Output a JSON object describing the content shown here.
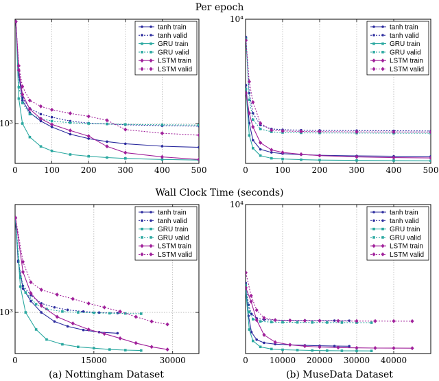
{
  "figure": {
    "row_titles": [
      "Per epoch",
      "Wall Clock Time (seconds)"
    ],
    "captions": [
      "(a) Nottingham Dataset",
      "(b) MuseData Dataset"
    ]
  },
  "series_style": [
    {
      "name": "tanh train",
      "color": "#2b2b9e",
      "dash": "solid",
      "marker": "circle"
    },
    {
      "name": "tanh valid",
      "color": "#2b2b9e",
      "dash": "dotted",
      "marker": "circle"
    },
    {
      "name": "GRU train",
      "color": "#2aa8a0",
      "dash": "solid",
      "marker": "square"
    },
    {
      "name": "GRU valid",
      "color": "#2aa8a0",
      "dash": "dotted",
      "marker": "square"
    },
    {
      "name": "LSTM train",
      "color": "#a0209a",
      "dash": "solid",
      "marker": "diamond"
    },
    {
      "name": "LSTM valid",
      "color": "#a0209a",
      "dash": "dotted",
      "marker": "diamond"
    }
  ],
  "chart_data": [
    {
      "type": "line",
      "y_scale": "log",
      "xlim": [
        0,
        500
      ],
      "ylim": [
        620,
        3500
      ],
      "xticks": [
        "0",
        "100",
        "200",
        "300",
        "400",
        "500"
      ],
      "xtick_values": [
        0,
        100,
        200,
        300,
        400,
        500
      ],
      "yticks": [
        {
          "label": "10³",
          "value": 1000
        }
      ],
      "legend": "top-right",
      "grid": true,
      "series": [
        {
          "name": "tanh train",
          "x": [
            2,
            10,
            20,
            40,
            70,
            100,
            150,
            200,
            250,
            300,
            400,
            500
          ],
          "y": [
            3400,
            1800,
            1320,
            1140,
            1030,
            960,
            880,
            835,
            805,
            785,
            762,
            752
          ]
        },
        {
          "name": "tanh valid",
          "x": [
            2,
            10,
            20,
            40,
            70,
            100,
            150,
            200,
            250,
            300,
            400,
            500
          ],
          "y": [
            3400,
            1800,
            1360,
            1200,
            1120,
            1080,
            1030,
            1005,
            995,
            985,
            975,
            970
          ]
        },
        {
          "name": "GRU train",
          "x": [
            2,
            10,
            20,
            40,
            70,
            100,
            150,
            200,
            250,
            300,
            400,
            500
          ],
          "y": [
            3400,
            1350,
            1000,
            850,
            760,
            720,
            690,
            675,
            665,
            658,
            650,
            645
          ]
        },
        {
          "name": "GRU valid",
          "x": [
            2,
            10,
            20,
            40,
            70,
            100,
            150,
            200,
            250,
            300,
            400,
            500
          ],
          "y": [
            3400,
            1550,
            1280,
            1120,
            1060,
            1030,
            1010,
            1000,
            995,
            990,
            985,
            982
          ]
        },
        {
          "name": "LSTM train",
          "x": [
            2,
            10,
            20,
            40,
            70,
            100,
            150,
            200,
            250,
            300,
            400,
            500
          ],
          "y": [
            3400,
            1900,
            1420,
            1190,
            1060,
            990,
            920,
            860,
            760,
            705,
            670,
            650
          ]
        },
        {
          "name": "LSTM valid",
          "x": [
            2,
            10,
            20,
            40,
            70,
            100,
            150,
            200,
            250,
            300,
            400,
            500
          ],
          "y": [
            3400,
            2000,
            1560,
            1320,
            1230,
            1180,
            1130,
            1090,
            1040,
            930,
            890,
            870
          ]
        }
      ]
    },
    {
      "type": "line",
      "y_scale": "log",
      "xlim": [
        0,
        500
      ],
      "ylim": [
        720,
        10000
      ],
      "xticks": [
        "0",
        "100",
        "200",
        "300",
        "400",
        "500"
      ],
      "xtick_values": [
        0,
        100,
        200,
        300,
        400,
        500
      ],
      "yticks": [
        {
          "label": "10⁴",
          "value": 10000
        }
      ],
      "legend": "top-right",
      "grid": true,
      "series": [
        {
          "name": "tanh train",
          "x": [
            1,
            10,
            20,
            40,
            70,
            100,
            150,
            200,
            300,
            400,
            500
          ],
          "y": [
            3000,
            1500,
            1100,
            930,
            880,
            860,
            845,
            835,
            825,
            820,
            818
          ]
        },
        {
          "name": "tanh valid",
          "x": [
            1,
            10,
            20,
            40,
            70,
            100,
            150,
            200,
            300,
            400,
            500
          ],
          "y": [
            7200,
            2600,
            1800,
            1450,
            1350,
            1330,
            1320,
            1315,
            1310,
            1305,
            1300
          ]
        },
        {
          "name": "GRU train",
          "x": [
            1,
            10,
            20,
            40,
            70,
            100,
            150,
            200,
            300,
            400,
            500
          ],
          "y": [
            2800,
            1200,
            950,
            830,
            790,
            780,
            770,
            765,
            760,
            758,
            755
          ]
        },
        {
          "name": "GRU valid",
          "x": [
            1,
            10,
            20,
            40,
            70,
            100,
            150,
            200,
            300,
            400,
            500
          ],
          "y": [
            7000,
            2300,
            1600,
            1350,
            1280,
            1265,
            1258,
            1255,
            1252,
            1250,
            1248
          ]
        },
        {
          "name": "LSTM train",
          "x": [
            1,
            10,
            20,
            40,
            70,
            100,
            150,
            200,
            300,
            400,
            500
          ],
          "y": [
            2600,
            1800,
            1400,
            1050,
            920,
            880,
            850,
            830,
            810,
            800,
            795
          ]
        },
        {
          "name": "LSTM valid",
          "x": [
            1,
            10,
            20,
            40,
            70,
            100,
            150,
            200,
            300,
            400,
            500
          ],
          "y": [
            6800,
            3200,
            2200,
            1500,
            1320,
            1300,
            1290,
            1285,
            1280,
            1278,
            1275
          ]
        }
      ]
    },
    {
      "type": "line",
      "y_scale": "log",
      "xlim": [
        0,
        35000
      ],
      "ylim": [
        620,
        3500
      ],
      "xticks": [
        "0",
        "15000",
        "30000"
      ],
      "xtick_values": [
        0,
        15000,
        30000
      ],
      "yticks": [
        {
          "label": "10³",
          "value": 1000
        }
      ],
      "legend": "top-right",
      "grid": true,
      "series": [
        {
          "name": "tanh train",
          "x": [
            40,
            600,
            1500,
            3000,
            5000,
            7500,
            10000,
            13000,
            16000,
            19500
          ],
          "y": [
            3000,
            1800,
            1320,
            1140,
            1000,
            900,
            850,
            815,
            795,
            785
          ]
        },
        {
          "name": "tanh valid",
          "x": [
            40,
            600,
            1500,
            3000,
            5000,
            7500,
            10000,
            13000,
            16000,
            19500
          ],
          "y": [
            3000,
            1820,
            1360,
            1220,
            1110,
            1060,
            1030,
            1010,
            998,
            992
          ]
        },
        {
          "name": "GRU train",
          "x": [
            50,
            1000,
            2000,
            4000,
            6000,
            9000,
            12000,
            15000,
            18000,
            21000,
            24000
          ],
          "y": [
            3000,
            1350,
            1000,
            820,
            730,
            690,
            670,
            660,
            650,
            645,
            642
          ]
        },
        {
          "name": "GRU valid",
          "x": [
            50,
            1000,
            2000,
            4000,
            6000,
            9000,
            12000,
            15000,
            18000,
            21000,
            24000
          ],
          "y": [
            3000,
            1500,
            1260,
            1100,
            1040,
            1010,
            1000,
            995,
            990,
            988,
            985
          ]
        },
        {
          "name": "LSTM train",
          "x": [
            80,
            1500,
            3000,
            5000,
            8000,
            11000,
            14000,
            17000,
            20000,
            23000,
            26000,
            29000
          ],
          "y": [
            3000,
            1600,
            1250,
            1080,
            950,
            880,
            820,
            780,
            740,
            700,
            670,
            650
          ]
        },
        {
          "name": "LSTM valid",
          "x": [
            80,
            1500,
            3000,
            5000,
            8000,
            11000,
            14000,
            17000,
            20000,
            23000,
            26000,
            29000
          ],
          "y": [
            3000,
            1800,
            1420,
            1300,
            1230,
            1170,
            1110,
            1060,
            1010,
            950,
            900,
            870
          ]
        }
      ]
    },
    {
      "type": "line",
      "y_scale": "log",
      "xlim": [
        0,
        50000
      ],
      "ylim": [
        720,
        10000
      ],
      "xticks": [
        "0",
        "10000",
        "20000",
        "30000",
        "40000"
      ],
      "xtick_values": [
        0,
        10000,
        20000,
        30000,
        40000
      ],
      "yticks": [
        {
          "label": "10⁴",
          "value": 10000
        }
      ],
      "legend": "top-right",
      "grid": true,
      "series": [
        {
          "name": "tanh train",
          "x": [
            40,
            800,
            1600,
            3000,
            5000,
            8000,
            12000,
            16000,
            20000,
            24000,
            28000
          ],
          "y": [
            2300,
            1400,
            1050,
            920,
            870,
            850,
            840,
            832,
            826,
            822,
            820
          ]
        },
        {
          "name": "tanh valid",
          "x": [
            40,
            800,
            1600,
            3000,
            5000,
            8000,
            12000,
            16000,
            20000,
            24000,
            28000
          ],
          "y": [
            2500,
            1700,
            1450,
            1340,
            1310,
            1300,
            1295,
            1292,
            1290,
            1288,
            1286
          ]
        },
        {
          "name": "GRU train",
          "x": [
            40,
            1000,
            2000,
            4000,
            7000,
            10000,
            14000,
            18000,
            22000,
            26000,
            30000,
            34000
          ],
          "y": [
            2200,
            1100,
            900,
            810,
            780,
            770,
            765,
            760,
            758,
            756,
            755,
            754
          ]
        },
        {
          "name": "GRU valid",
          "x": [
            40,
            1000,
            2000,
            4000,
            7000,
            10000,
            14000,
            18000,
            22000,
            26000,
            30000,
            34000
          ],
          "y": [
            2400,
            1500,
            1320,
            1270,
            1255,
            1250,
            1248,
            1246,
            1245,
            1244,
            1243,
            1242
          ]
        },
        {
          "name": "LSTM train",
          "x": [
            80,
            1500,
            3000,
            5000,
            8000,
            12000,
            16000,
            20000,
            25000,
            30000,
            35000,
            40000,
            45000
          ],
          "y": [
            2300,
            1800,
            1300,
            1000,
            880,
            840,
            820,
            808,
            800,
            796,
            793,
            792,
            791
          ]
        },
        {
          "name": "LSTM valid",
          "x": [
            80,
            1500,
            3000,
            5000,
            8000,
            12000,
            16000,
            20000,
            25000,
            30000,
            35000,
            40000,
            45000
          ],
          "y": [
            3000,
            2000,
            1550,
            1350,
            1300,
            1290,
            1285,
            1282,
            1280,
            1278,
            1277,
            1276,
            1275
          ]
        }
      ]
    }
  ]
}
